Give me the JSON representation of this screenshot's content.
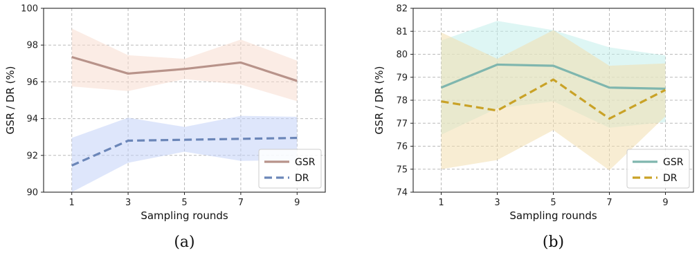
{
  "chart_data": [
    {
      "type": "line",
      "panel_caption": "(a)",
      "xlabel": "Sampling rounds",
      "ylabel": "GSR / DR (%)",
      "x": [
        1,
        3,
        5,
        7,
        9
      ],
      "xticks": [
        "1",
        "3",
        "5",
        "7",
        "9"
      ],
      "xlim": [
        0,
        10
      ],
      "ylim": [
        90,
        100
      ],
      "yticks": [
        "90",
        "92",
        "94",
        "96",
        "98",
        "100"
      ],
      "grid": true,
      "legend_position": "lower-right",
      "series": [
        {
          "name": "GSR",
          "line_style": "solid",
          "color": "#b8938a",
          "band_color": "#f7ddd0",
          "values": [
            97.35,
            96.45,
            96.7,
            97.05,
            96.05
          ],
          "upper": [
            98.9,
            97.45,
            97.25,
            98.3,
            97.15
          ],
          "lower": [
            95.75,
            95.5,
            96.15,
            95.85,
            94.95
          ]
        },
        {
          "name": "DR",
          "line_style": "dashed",
          "color": "#6b86b8",
          "band_color": "#c3d2f7",
          "values": [
            91.45,
            92.8,
            92.85,
            92.9,
            92.95
          ],
          "upper": [
            92.95,
            94.05,
            93.55,
            94.15,
            94.1
          ],
          "lower": [
            90.0,
            91.6,
            92.2,
            91.7,
            91.75
          ]
        }
      ]
    },
    {
      "type": "line",
      "panel_caption": "(b)",
      "xlabel": "Sampling rounds",
      "ylabel": "GSR / DR (%)",
      "x": [
        1,
        3,
        5,
        7,
        9
      ],
      "xticks": [
        "1",
        "3",
        "5",
        "7",
        "9"
      ],
      "xlim": [
        0,
        10
      ],
      "ylim": [
        74,
        82
      ],
      "yticks": [
        "74",
        "75",
        "76",
        "77",
        "78",
        "79",
        "80",
        "81",
        "82"
      ],
      "grid": true,
      "legend_position": "lower-right",
      "series": [
        {
          "name": "GSR",
          "line_style": "solid",
          "color": "#7fb6ae",
          "band_color": "#c3efeb",
          "values": [
            78.55,
            79.55,
            79.5,
            78.55,
            78.5
          ],
          "upper": [
            80.6,
            81.45,
            81.05,
            80.3,
            79.95
          ],
          "lower": [
            76.5,
            77.65,
            77.95,
            76.8,
            77.05
          ]
        },
        {
          "name": "DR",
          "line_style": "dashed",
          "color": "#c9a227",
          "band_color": "#f2dfae",
          "values": [
            77.95,
            77.55,
            78.9,
            77.2,
            78.45
          ],
          "upper": [
            80.95,
            79.8,
            81.05,
            79.5,
            79.6
          ],
          "lower": [
            75.0,
            75.4,
            76.7,
            74.95,
            77.3
          ]
        }
      ]
    }
  ]
}
